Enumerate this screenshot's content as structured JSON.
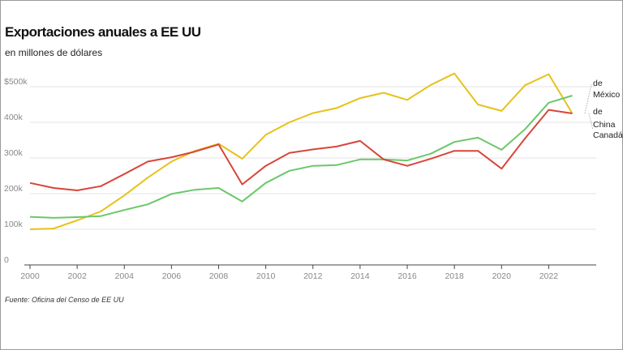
{
  "title": "Exportaciones anuales a EE UU",
  "subtitle": "en millones de dólares",
  "source": "Fuente: Oficina del Censo de EE UU",
  "colors": {
    "mexico": "#e6c21a",
    "canada": "#6cc76a",
    "china": "#d8453a",
    "grid": "#e3e3e3",
    "axis": "#444444"
  },
  "chart_data": {
    "type": "line",
    "title": "Exportaciones anuales a EE UU",
    "subtitle": "en millones de dólares",
    "x": [
      2000,
      2001,
      2002,
      2003,
      2004,
      2005,
      2006,
      2007,
      2008,
      2009,
      2010,
      2011,
      2012,
      2013,
      2014,
      2015,
      2016,
      2017,
      2018,
      2019,
      2020,
      2021,
      2022,
      2023
    ],
    "xlim": [
      2000,
      2023.5
    ],
    "ylim": [
      0,
      500
    ],
    "x_ticks": [
      "2000",
      "2002",
      "2004",
      "2006",
      "2008",
      "2010",
      "2012",
      "2014",
      "2016",
      "2018",
      "2020",
      "2022"
    ],
    "y_ticks": [
      "0",
      "100k",
      "200k",
      "300k",
      "400k",
      "$500k"
    ],
    "y_tick_values": [
      0,
      100,
      200,
      300,
      400,
      500
    ],
    "grid": true,
    "series": [
      {
        "name": "de México",
        "key": "mexico",
        "values": [
          100,
          102,
          125,
          150,
          195,
          245,
          290,
          320,
          340,
          298,
          365,
          400,
          426,
          440,
          468,
          483,
          463,
          505,
          537,
          450,
          432,
          504,
          535,
          425
        ]
      },
      {
        "name": "de Canadá",
        "key": "canada",
        "values": [
          135,
          132,
          134,
          137,
          154,
          170,
          199,
          211,
          216,
          178,
          230,
          264,
          278,
          280,
          296,
          296,
          293,
          312,
          345,
          357,
          323,
          381,
          455,
          475
        ]
      },
      {
        "name": "de China",
        "key": "china",
        "values": [
          230,
          216,
          209,
          221,
          255,
          290,
          302,
          318,
          338,
          226,
          278,
          314,
          324,
          332,
          348,
          296,
          278,
          298,
          320,
          320,
          270,
          355,
          435,
          425
        ]
      }
    ],
    "end_labels": {
      "mexico": [
        "de",
        "México"
      ],
      "china": [
        "de",
        "China"
      ],
      "canada": [
        "Canadá"
      ]
    }
  }
}
